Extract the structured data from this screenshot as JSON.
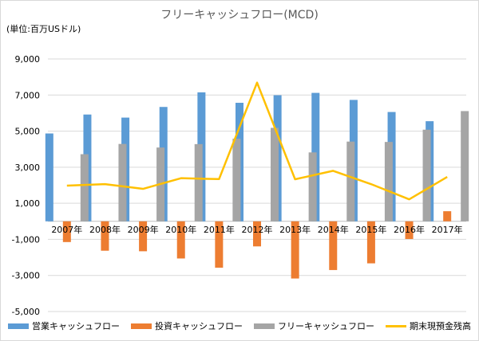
{
  "chart_data": {
    "type": "bar",
    "title": "フリーキャッシュフロー(MCD)",
    "unit_label": "(単位:百万USドル)",
    "categories": [
      "2007年",
      "2008年",
      "2009年",
      "2010年",
      "2011年",
      "2012年",
      "2013年",
      "2014年",
      "2015年",
      "2016年",
      "2017年"
    ],
    "series": [
      {
        "name": "営業キャッシュフロー",
        "kind": "bar",
        "color": "#5b9bd5",
        "values": [
          4870,
          5920,
          5750,
          6340,
          7150,
          6570,
          6990,
          7120,
          6730,
          6060,
          5550
        ]
      },
      {
        "name": "投資キャッシュフロー",
        "kind": "bar",
        "color": "#ed7d31",
        "values": [
          -1150,
          -1630,
          -1660,
          -2060,
          -2570,
          -1390,
          -3170,
          -2700,
          -2330,
          -980,
          560
        ]
      },
      {
        "name": "フリーキャッシュフロー",
        "kind": "bar",
        "color": "#a5a5a5",
        "values": [
          3720,
          4290,
          4090,
          4280,
          4580,
          5180,
          3820,
          4420,
          4400,
          5080,
          6110
        ]
      },
      {
        "name": "期末現預金残高",
        "kind": "line",
        "color": "#ffc000",
        "values": [
          1980,
          2060,
          1800,
          2390,
          2340,
          7690,
          2330,
          2800,
          2060,
          1220,
          2460
        ]
      }
    ],
    "ylim": [
      -5000,
      9000
    ],
    "yticks": [
      -5000,
      -3000,
      -1000,
      1000,
      3000,
      5000,
      7000,
      9000
    ],
    "ytick_labels": [
      "-5,000",
      "-3,000",
      "-1,000",
      "1,000",
      "3,000",
      "5,000",
      "7,000",
      "9,000"
    ],
    "grid": true,
    "legend_position": "bottom"
  }
}
